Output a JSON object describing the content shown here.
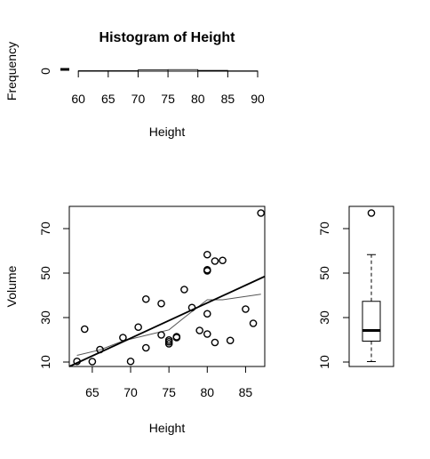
{
  "chart_data": [
    {
      "type": "histogram",
      "title": "Histogram of Height",
      "xlabel": "Height",
      "ylabel": "Frequency",
      "xlim": [
        57,
        90
      ],
      "ylim": [
        0,
        400
      ],
      "x_ticks": [
        "60",
        "65",
        "70",
        "75",
        "80",
        "85",
        "90"
      ],
      "y_ticks": [
        "0"
      ],
      "bins": [
        {
          "from": 60,
          "to": 65,
          "count": 3
        },
        {
          "from": 65,
          "to": 70,
          "count": 3
        },
        {
          "from": 70,
          "to": 75,
          "count": 8
        },
        {
          "from": 75,
          "to": 80,
          "count": 10
        },
        {
          "from": 80,
          "to": 85,
          "count": 5
        },
        {
          "from": 85,
          "to": 90,
          "count": 2
        }
      ]
    },
    {
      "type": "scatter",
      "xlabel": "Height",
      "ylabel": "Volume",
      "xlim": [
        62,
        87.5
      ],
      "ylim": [
        8,
        80
      ],
      "x_ticks": [
        "65",
        "70",
        "75",
        "80",
        "85"
      ],
      "y_ticks": [
        "10",
        "30",
        "50",
        "70"
      ],
      "points": [
        {
          "x": 63,
          "y": 10.3
        },
        {
          "x": 64,
          "y": 24.8
        },
        {
          "x": 65,
          "y": 10.2
        },
        {
          "x": 66,
          "y": 15.6
        },
        {
          "x": 69,
          "y": 21.0
        },
        {
          "x": 70,
          "y": 10.3
        },
        {
          "x": 71,
          "y": 25.7
        },
        {
          "x": 72,
          "y": 16.4
        },
        {
          "x": 72,
          "y": 38.3
        },
        {
          "x": 74,
          "y": 22.2
        },
        {
          "x": 74,
          "y": 36.3
        },
        {
          "x": 75,
          "y": 18.2
        },
        {
          "x": 75,
          "y": 19.1
        },
        {
          "x": 75,
          "y": 19.9
        },
        {
          "x": 76,
          "y": 21.0
        },
        {
          "x": 76,
          "y": 21.4
        },
        {
          "x": 77,
          "y": 42.6
        },
        {
          "x": 78,
          "y": 34.5
        },
        {
          "x": 79,
          "y": 24.2
        },
        {
          "x": 80,
          "y": 22.6
        },
        {
          "x": 80,
          "y": 31.7
        },
        {
          "x": 80,
          "y": 51.0
        },
        {
          "x": 80,
          "y": 51.5
        },
        {
          "x": 80,
          "y": 58.3
        },
        {
          "x": 81,
          "y": 18.8
        },
        {
          "x": 81,
          "y": 55.4
        },
        {
          "x": 82,
          "y": 55.7
        },
        {
          "x": 83,
          "y": 19.7
        },
        {
          "x": 85,
          "y": 33.8
        },
        {
          "x": 86,
          "y": 27.4
        },
        {
          "x": 87,
          "y": 77.0
        }
      ],
      "regression_line": [
        {
          "x": 62,
          "y": 8.0
        },
        {
          "x": 87.5,
          "y": 48.5
        }
      ],
      "smooth_line": [
        {
          "x": 63,
          "y": 13.0
        },
        {
          "x": 66,
          "y": 15.5
        },
        {
          "x": 69,
          "y": 19.5
        },
        {
          "x": 72,
          "y": 22.0
        },
        {
          "x": 75,
          "y": 24.5
        },
        {
          "x": 77,
          "y": 30.0
        },
        {
          "x": 80,
          "y": 38.0
        },
        {
          "x": 82,
          "y": 38.0
        },
        {
          "x": 84,
          "y": 39.0
        },
        {
          "x": 87,
          "y": 40.5
        }
      ]
    },
    {
      "type": "boxplot",
      "ylim": [
        8,
        80
      ],
      "y_ticks": [
        "10",
        "30",
        "50",
        "70"
      ],
      "min": 10.2,
      "q1": 19.4,
      "median": 24.2,
      "q3": 37.3,
      "max": 58.3,
      "outliers": [
        77.0
      ]
    }
  ]
}
